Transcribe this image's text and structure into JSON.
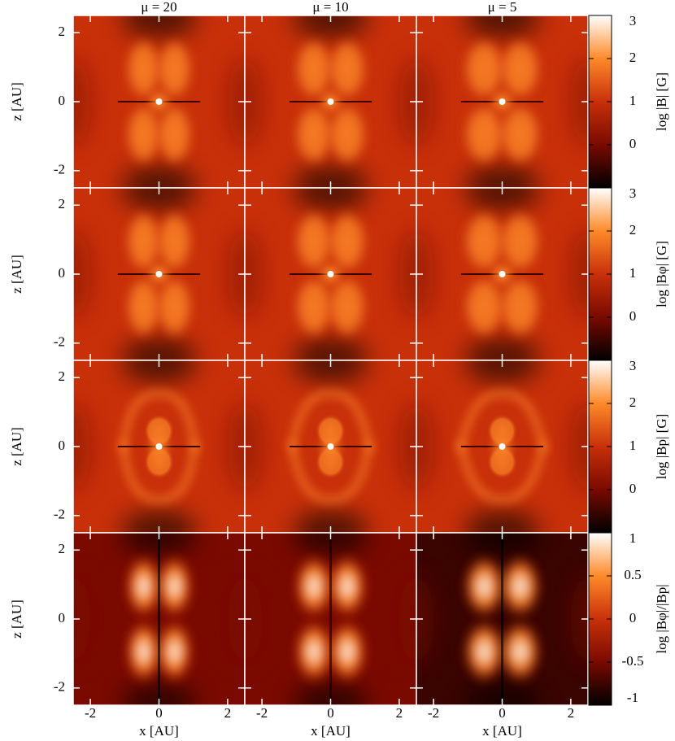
{
  "chart_data": {
    "type": "heatmap",
    "columns": [
      "μ = 20",
      "μ = 10",
      "μ = 5"
    ],
    "xlabel": "x [AU]",
    "ylabel": "z [AU]",
    "xlim": [
      -2.5,
      2.5
    ],
    "xticks": [
      -2,
      0,
      2
    ],
    "ylim": [
      -2.5,
      2.5
    ],
    "yticks": [
      -2,
      0,
      2
    ],
    "colormap": [
      "#000000",
      "#7a0a00",
      "#c8300a",
      "#ff8a2a",
      "#ffffff"
    ],
    "rows": [
      {
        "colorbar_label": "log |B| [G]",
        "clim": [
          -1,
          3
        ],
        "cticks": [
          0,
          1,
          2,
          3
        ]
      },
      {
        "colorbar_label": "log |Bφ| [G]",
        "clim": [
          -1,
          3
        ],
        "cticks": [
          0,
          1,
          2,
          3
        ]
      },
      {
        "colorbar_label": "log |Bp| [G]",
        "clim": [
          -1,
          3
        ],
        "cticks": [
          0,
          1,
          2,
          3
        ]
      },
      {
        "colorbar_label": "log |Bφ|/|Bp|",
        "clim": [
          -1,
          1
        ],
        "cticks": [
          -1,
          -0.5,
          0,
          0.5,
          1
        ]
      }
    ]
  }
}
